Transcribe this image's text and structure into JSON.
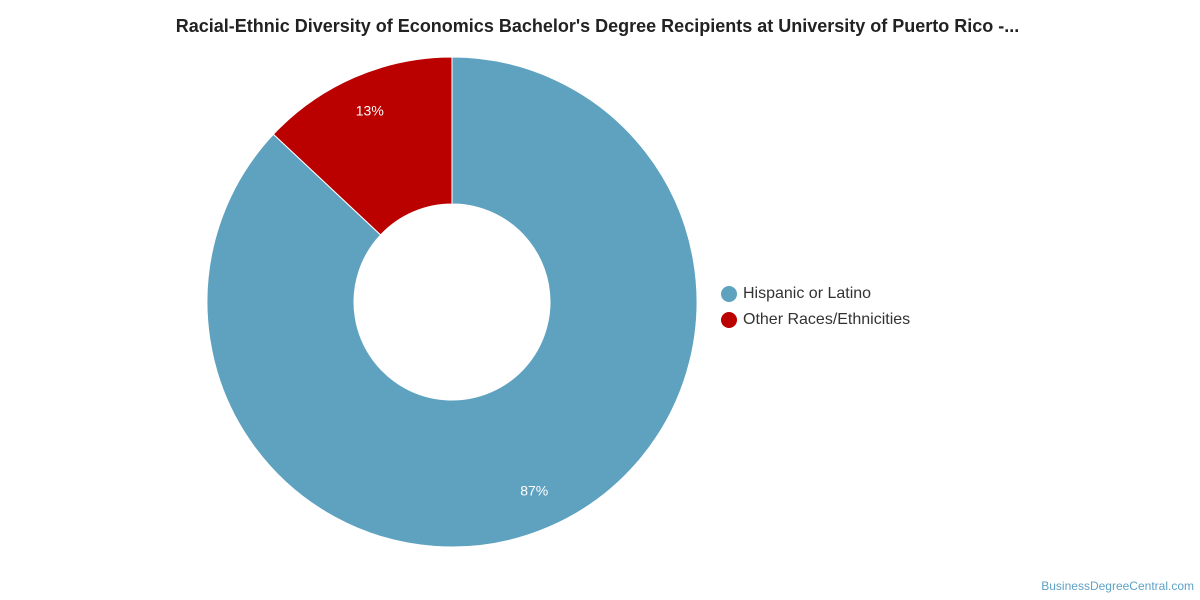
{
  "chart_data": {
    "type": "pie",
    "variant": "donut",
    "title": "Racial-Ethnic Diversity of Economics Bachelor's Degree Recipients at University of Puerto Rico -...",
    "categories": [
      "Hispanic or Latino",
      "Other Races/Ethnicities"
    ],
    "values": [
      87,
      13
    ],
    "value_labels": [
      "87%",
      "13%"
    ],
    "colors": [
      "#5ea2c0",
      "#bb0000"
    ],
    "legend_position": "right"
  },
  "footer": {
    "credit": "BusinessDegreeCentral.com"
  }
}
